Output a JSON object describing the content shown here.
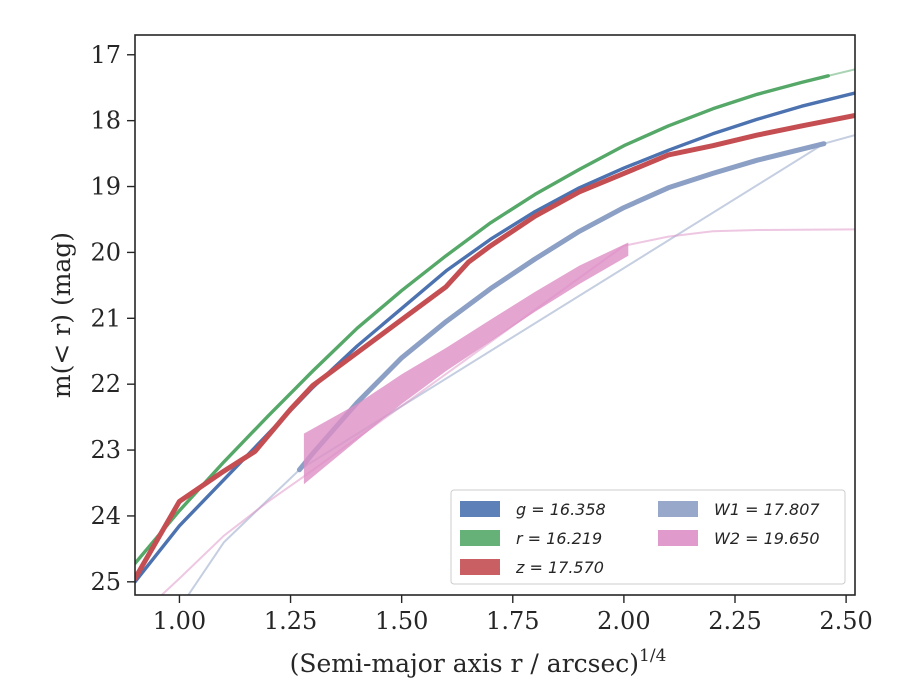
{
  "chart_data": {
    "type": "line",
    "xlabel": "(Semi-major axis r / arcsec)",
    "xlabel_superscript": "1/4",
    "ylabel": "m(< r) (mag)",
    "xlim": [
      0.9,
      2.52
    ],
    "ylim": [
      25.2,
      16.7
    ],
    "y_inverted": true,
    "grid": false,
    "legend_position": "lower-right",
    "xticks": [
      "1.00",
      "1.25",
      "1.50",
      "1.75",
      "2.00",
      "2.25",
      "2.50"
    ],
    "yticks": [
      "17",
      "18",
      "19",
      "20",
      "21",
      "22",
      "23",
      "24",
      "25"
    ],
    "series": [
      {
        "name": "g = 16.358",
        "color": "#4c72b0",
        "solid": [
          [
            0.9,
            25.0
          ],
          [
            1.0,
            24.15
          ],
          [
            1.1,
            23.45
          ],
          [
            1.2,
            22.75
          ],
          [
            1.3,
            22.05
          ],
          [
            1.4,
            21.42
          ],
          [
            1.5,
            20.85
          ],
          [
            1.6,
            20.28
          ],
          [
            1.7,
            19.8
          ],
          [
            1.8,
            19.38
          ],
          [
            1.9,
            19.02
          ],
          [
            2.0,
            18.72
          ],
          [
            2.1,
            18.45
          ],
          [
            2.2,
            18.2
          ],
          [
            2.3,
            17.98
          ],
          [
            2.4,
            17.78
          ],
          [
            2.52,
            17.58
          ]
        ],
        "halo": [],
        "band": []
      },
      {
        "name": "r = 16.219",
        "color": "#55a868",
        "solid": [
          [
            0.9,
            24.72
          ],
          [
            1.0,
            23.92
          ],
          [
            1.1,
            23.18
          ],
          [
            1.2,
            22.48
          ],
          [
            1.3,
            21.8
          ],
          [
            1.4,
            21.15
          ],
          [
            1.5,
            20.58
          ],
          [
            1.6,
            20.05
          ],
          [
            1.7,
            19.55
          ],
          [
            1.8,
            19.12
          ],
          [
            1.9,
            18.74
          ],
          [
            2.0,
            18.38
          ],
          [
            2.1,
            18.08
          ],
          [
            2.2,
            17.82
          ],
          [
            2.3,
            17.6
          ],
          [
            2.4,
            17.42
          ],
          [
            2.46,
            17.32
          ]
        ],
        "halo": [
          [
            2.46,
            17.32
          ],
          [
            2.52,
            17.22
          ]
        ],
        "band": []
      },
      {
        "name": "z = 17.570",
        "color": "#c44e52",
        "solid": [
          [
            0.9,
            24.95
          ],
          [
            1.0,
            23.78
          ],
          [
            1.1,
            23.32
          ],
          [
            1.17,
            23.02
          ],
          [
            1.25,
            22.38
          ],
          [
            1.3,
            22.02
          ],
          [
            1.4,
            21.52
          ],
          [
            1.5,
            21.02
          ],
          [
            1.6,
            20.52
          ],
          [
            1.65,
            20.15
          ],
          [
            1.7,
            19.9
          ],
          [
            1.8,
            19.45
          ],
          [
            1.9,
            19.08
          ],
          [
            2.0,
            18.8
          ],
          [
            2.1,
            18.52
          ],
          [
            2.2,
            18.38
          ],
          [
            2.3,
            18.22
          ],
          [
            2.4,
            18.08
          ],
          [
            2.52,
            17.92
          ]
        ],
        "halo": [],
        "band": [],
        "width": 5
      },
      {
        "name": "W1 = 17.807",
        "color": "#8c9fc4",
        "solid": [
          [
            1.27,
            23.3
          ],
          [
            1.3,
            23.05
          ],
          [
            1.4,
            22.28
          ],
          [
            1.5,
            21.6
          ],
          [
            1.6,
            21.05
          ],
          [
            1.7,
            20.55
          ],
          [
            1.8,
            20.1
          ],
          [
            1.9,
            19.68
          ],
          [
            2.0,
            19.32
          ],
          [
            2.1,
            19.02
          ],
          [
            2.2,
            18.8
          ],
          [
            2.3,
            18.6
          ],
          [
            2.45,
            18.35
          ]
        ],
        "halo": [
          [
            1.02,
            25.2
          ],
          [
            1.1,
            24.4
          ],
          [
            1.2,
            23.75
          ],
          [
            1.27,
            23.3
          ],
          [
            2.45,
            18.35
          ],
          [
            2.52,
            18.22
          ]
        ],
        "band": [],
        "width": 5
      },
      {
        "name": "W2 = 19.650",
        "color": "#dd8fc5",
        "solid": [],
        "halo": [
          [
            0.96,
            25.2
          ],
          [
            1.0,
            24.95
          ],
          [
            1.1,
            24.3
          ],
          [
            1.2,
            23.78
          ],
          [
            1.28,
            23.4
          ],
          [
            2.0,
            19.9
          ],
          [
            2.1,
            19.76
          ],
          [
            2.2,
            19.68
          ],
          [
            2.3,
            19.66
          ],
          [
            2.52,
            19.65
          ]
        ],
        "band": [
          [
            1.28,
            22.75,
            23.52
          ],
          [
            1.4,
            22.3,
            22.85
          ],
          [
            1.5,
            21.85,
            22.3
          ],
          [
            1.6,
            21.45,
            21.8
          ],
          [
            1.7,
            21.02,
            21.35
          ],
          [
            1.8,
            20.6,
            20.9
          ],
          [
            1.9,
            20.2,
            20.48
          ],
          [
            2.01,
            19.85,
            20.05
          ]
        ]
      }
    ]
  }
}
